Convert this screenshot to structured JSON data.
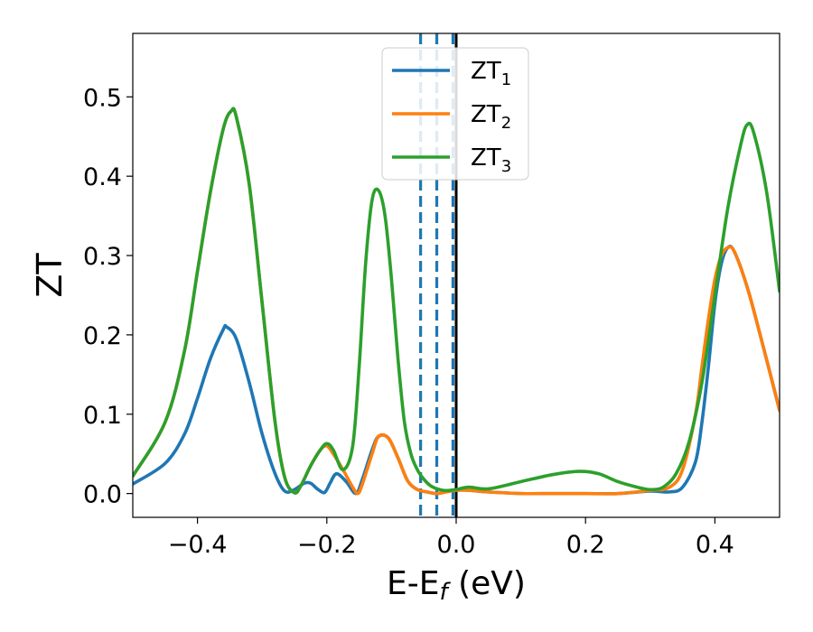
{
  "chart_data": {
    "type": "line",
    "xlabel": "E-E",
    "xlabel_sub": "f",
    "xlabel_unit": " (eV)",
    "ylabel": "ZT",
    "xlim": [
      -0.5,
      0.5
    ],
    "ylim": [
      -0.03,
      0.58
    ],
    "xticks": [
      -0.4,
      -0.2,
      0.0,
      0.2,
      0.4
    ],
    "xtick_labels": [
      "−0.4",
      "−0.2",
      "0.0",
      "0.2",
      "0.4"
    ],
    "yticks": [
      0.0,
      0.1,
      0.2,
      0.3,
      0.4,
      0.5
    ],
    "ytick_labels": [
      "0.0",
      "0.1",
      "0.2",
      "0.3",
      "0.4",
      "0.5"
    ],
    "grid": false,
    "legend_position": "top-center",
    "vertical_lines": [
      {
        "x": -0.055,
        "style": "dashed",
        "color": "#1f77b4"
      },
      {
        "x": -0.03,
        "style": "dashed",
        "color": "#1f77b4"
      },
      {
        "x": -0.005,
        "style": "dashed",
        "color": "#1f77b4"
      },
      {
        "x": 0.0,
        "style": "solid",
        "color": "#000000"
      }
    ],
    "series": [
      {
        "name": "ZT",
        "subscript": "1",
        "color": "#1f77b4",
        "x": [
          -0.5,
          -0.45,
          -0.42,
          -0.4,
          -0.38,
          -0.36,
          -0.355,
          -0.34,
          -0.32,
          -0.3,
          -0.28,
          -0.265,
          -0.25,
          -0.235,
          -0.225,
          -0.215,
          -0.205,
          -0.2,
          -0.195,
          -0.185,
          -0.17,
          -0.155,
          -0.145,
          -0.13,
          -0.12,
          -0.105,
          -0.09,
          -0.075,
          -0.06,
          -0.045,
          -0.03,
          -0.015,
          0.0,
          0.02,
          0.05,
          0.1,
          0.15,
          0.2,
          0.25,
          0.3,
          0.33,
          0.35,
          0.37,
          0.38,
          0.39,
          0.4,
          0.41,
          0.42,
          0.43,
          0.45,
          0.47,
          0.5
        ],
        "y": [
          0.012,
          0.038,
          0.075,
          0.12,
          0.17,
          0.207,
          0.21,
          0.195,
          0.14,
          0.075,
          0.025,
          0.003,
          0.005,
          0.013,
          0.013,
          0.006,
          0.001,
          0.005,
          0.013,
          0.025,
          0.015,
          0.0,
          0.018,
          0.055,
          0.072,
          0.07,
          0.045,
          0.016,
          0.005,
          0.002,
          0.0,
          0.003,
          0.005,
          0.004,
          0.002,
          0.0,
          0.0,
          0.0,
          0.0,
          0.003,
          0.002,
          0.008,
          0.04,
          0.09,
          0.16,
          0.24,
          0.29,
          0.31,
          0.305,
          0.26,
          0.2,
          0.105
        ]
      },
      {
        "name": "ZT",
        "subscript": "2",
        "color": "#ff7f0e",
        "x": [
          -0.5,
          -0.45,
          -0.42,
          -0.4,
          -0.38,
          -0.36,
          -0.348,
          -0.34,
          -0.32,
          -0.3,
          -0.28,
          -0.265,
          -0.25,
          -0.24,
          -0.225,
          -0.21,
          -0.2,
          -0.19,
          -0.175,
          -0.16,
          -0.152,
          -0.145,
          -0.13,
          -0.12,
          -0.105,
          -0.09,
          -0.075,
          -0.06,
          -0.045,
          -0.03,
          -0.015,
          0.0,
          0.02,
          0.05,
          0.1,
          0.15,
          0.2,
          0.25,
          0.3,
          0.33,
          0.35,
          0.37,
          0.38,
          0.39,
          0.4,
          0.41,
          0.42,
          0.43,
          0.45,
          0.47,
          0.5
        ],
        "y": [
          0.022,
          0.09,
          0.18,
          0.28,
          0.38,
          0.46,
          0.482,
          0.475,
          0.39,
          0.24,
          0.09,
          0.02,
          0.001,
          0.01,
          0.035,
          0.055,
          0.06,
          0.05,
          0.03,
          0.008,
          0.0,
          0.012,
          0.05,
          0.072,
          0.07,
          0.045,
          0.016,
          0.005,
          0.002,
          0.0,
          0.002,
          0.004,
          0.004,
          0.002,
          0.0,
          0.0,
          0.0,
          0.0,
          0.004,
          0.008,
          0.03,
          0.1,
          0.16,
          0.22,
          0.27,
          0.3,
          0.31,
          0.305,
          0.26,
          0.2,
          0.105
        ]
      },
      {
        "name": "ZT",
        "subscript": "3",
        "color": "#2ca02c",
        "x": [
          -0.5,
          -0.45,
          -0.42,
          -0.4,
          -0.38,
          -0.36,
          -0.348,
          -0.34,
          -0.32,
          -0.3,
          -0.28,
          -0.265,
          -0.25,
          -0.24,
          -0.225,
          -0.21,
          -0.2,
          -0.19,
          -0.175,
          -0.16,
          -0.15,
          -0.14,
          -0.13,
          -0.12,
          -0.11,
          -0.1,
          -0.09,
          -0.08,
          -0.07,
          -0.06,
          -0.05,
          -0.04,
          -0.03,
          -0.02,
          -0.01,
          0.0,
          0.02,
          0.05,
          0.1,
          0.15,
          0.19,
          0.22,
          0.25,
          0.28,
          0.3,
          0.32,
          0.34,
          0.36,
          0.38,
          0.4,
          0.42,
          0.44,
          0.45,
          0.46,
          0.48,
          0.5
        ],
        "y": [
          0.022,
          0.09,
          0.18,
          0.28,
          0.38,
          0.46,
          0.482,
          0.475,
          0.39,
          0.24,
          0.09,
          0.02,
          0.001,
          0.01,
          0.035,
          0.055,
          0.063,
          0.055,
          0.03,
          0.06,
          0.16,
          0.29,
          0.37,
          0.382,
          0.35,
          0.27,
          0.17,
          0.09,
          0.05,
          0.03,
          0.018,
          0.01,
          0.006,
          0.004,
          0.004,
          0.005,
          0.008,
          0.006,
          0.015,
          0.024,
          0.028,
          0.025,
          0.015,
          0.008,
          0.005,
          0.008,
          0.025,
          0.065,
          0.14,
          0.25,
          0.36,
          0.44,
          0.465,
          0.455,
          0.38,
          0.255
        ]
      }
    ]
  }
}
